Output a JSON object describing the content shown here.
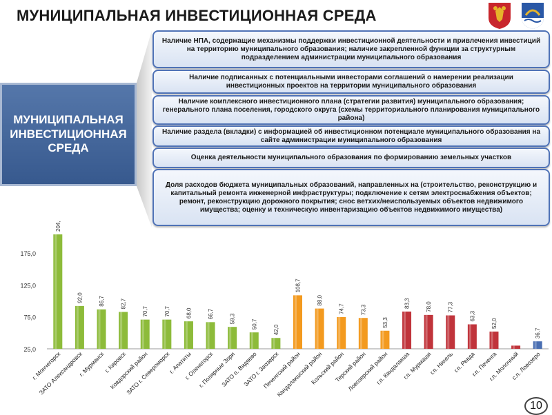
{
  "header": {
    "title": "МУНИЦИПАЛЬНАЯ ИНВЕСТИЦИОННАЯ СРЕДА"
  },
  "left_box": {
    "label": "МУНИЦИПАЛЬНАЯ ИНВЕСТИЦИОННАЯ СРЕДА"
  },
  "criteria": [
    "Наличие НПА, содержащие механизмы поддержки инвестиционной деятельности и привлечения инвестиций на территорию муниципального образования; наличие закрепленной функции за структурным подразделением администрации муниципального образования",
    "Наличие подписанных с потенциальными инвесторами соглашений о намерении реализации инвестиционных проектов на территории муниципального образования",
    "Наличие комплексного инвестиционного плана (стратегии развития) муниципального образования; генерального плана поселения, городского округа (схемы территориального планирования муниципального района)",
    "Наличие раздела (вкладки) с информацией об инвестиционном потенциале муниципального образования на сайте администрации муниципального образования",
    "Оценка деятельности муниципального образования по формированию земельных участков",
    "Доля расходов бюджета муниципальных образований, направленных на (строительство, реконструкцию и капитальный ремонта инженерной инфраструктуры; подключение к сетям электроснабжения объектов; ремонт, реконструкцию дорожного покрытия; снос ветхих/неиспользуемых объектов недвижимого имущества; оценку и техническую инвентаризацию объектов недвижимого имущества)"
  ],
  "page_number": "10",
  "colors": {
    "green": "#8dbb3a",
    "orange": "#f39a1f",
    "red": "#c0343b",
    "blue": "#4a6fb2",
    "panel_border": "#4f72b6"
  },
  "chart_data": {
    "type": "bar",
    "categories": [
      "г. Мончегорск",
      "ЗАТО Александровск",
      "г. Мурманск",
      "г. Кировск",
      "Ковдорский район",
      "ЗАТО г. Североморск",
      "г. Апатиты",
      "г. Оленегорск",
      "г. Полярные Зори",
      "ЗАТО п. Видяево",
      "ЗАТО г. Заозерск",
      "Печенгский район",
      "Кандалакшский район",
      "Кольский район",
      "Терский район",
      "Ловозерский район",
      "г.п. Кандалакша",
      "г.п. Мурмаши",
      "г.п. Никель",
      "г.п. Ревда",
      "г.п. Печенга",
      "г.п. Молочный",
      "с.п. Ловозеро"
    ],
    "values": [
      204.0,
      92.0,
      86.7,
      82.7,
      70.7,
      70.7,
      68.0,
      66.7,
      59.3,
      50.7,
      42.0,
      108.7,
      88.0,
      74.7,
      73.3,
      53.3,
      83.3,
      78.0,
      77.3,
      63.3,
      52.0,
      30.0,
      36.7
    ],
    "value_labels": [
      "204,0",
      "92,0",
      "86,7",
      "82,7",
      "70,7",
      "70,7",
      "68,0",
      "66,7",
      "59,3",
      "50,7",
      "42,0",
      "108,7",
      "88,0",
      "74,7",
      "73,3",
      "53,3",
      "83,3",
      "78,0",
      "77,3",
      "63,3",
      "52,0",
      "",
      "36,7"
    ],
    "groups": [
      "green",
      "green",
      "green",
      "green",
      "green",
      "green",
      "green",
      "green",
      "green",
      "green",
      "green",
      "orange",
      "orange",
      "orange",
      "orange",
      "orange",
      "red",
      "red",
      "red",
      "red",
      "red",
      "red",
      "blue"
    ],
    "yticks": [
      25,
      75,
      125,
      175
    ],
    "ytick_labels": [
      "25,0",
      "75,0",
      "125,0",
      "175,0"
    ],
    "ylim": [
      25,
      204
    ],
    "grid": false
  }
}
